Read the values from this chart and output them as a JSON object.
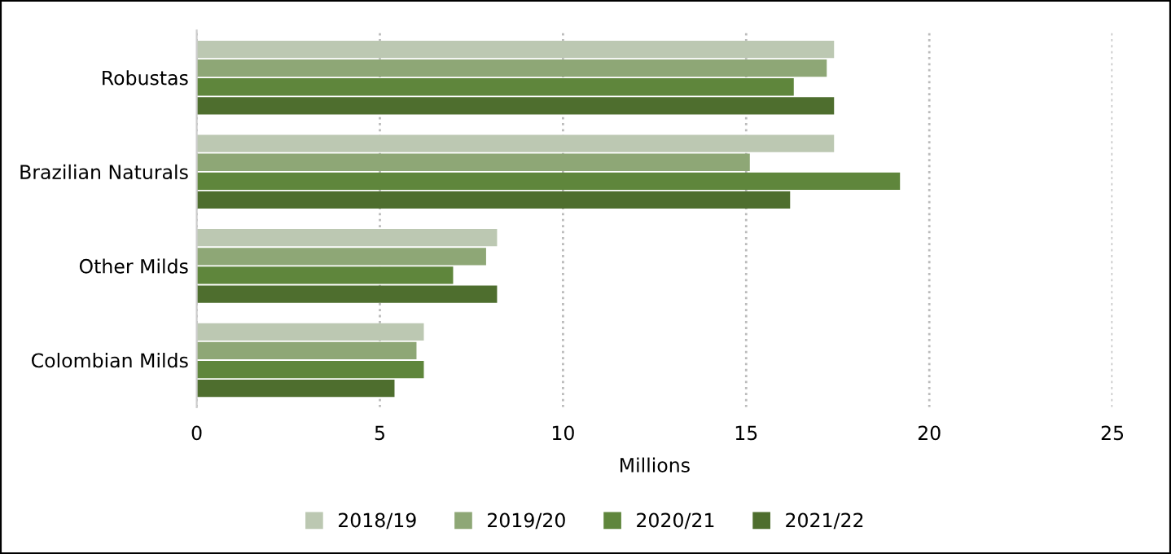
{
  "chart_data": {
    "type": "bar",
    "orientation": "horizontal",
    "xlabel": "Millions",
    "categories": [
      "Robustas",
      "Brazilian Naturals",
      "Other Milds",
      "Colombian Milds"
    ],
    "series": [
      {
        "name": "2018/19",
        "color": "#bcc8b2",
        "values": [
          17.4,
          17.4,
          8.2,
          6.2
        ]
      },
      {
        "name": "2019/20",
        "color": "#8ea776",
        "values": [
          17.2,
          15.1,
          7.9,
          6.0
        ]
      },
      {
        "name": "2020/21",
        "color": "#5f863c",
        "values": [
          16.3,
          19.2,
          7.0,
          6.2
        ]
      },
      {
        "name": "2021/22",
        "color": "#4e6e2e",
        "values": [
          17.4,
          16.2,
          8.2,
          5.4
        ]
      }
    ],
    "xlim": [
      0,
      25
    ],
    "xticks": [
      0,
      5,
      10,
      15,
      20,
      25
    ],
    "grid": "x",
    "legend": "bottom"
  }
}
